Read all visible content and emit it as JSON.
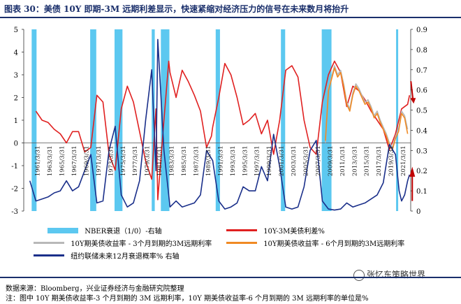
{
  "header": {
    "title": "图表 30：美债 10Y 即期-3M 远期利差显示，快速紧缩对经济压力的信号在未来数月将抬升"
  },
  "legend": {
    "nber": "NBER衰退（1/0）-右轴",
    "spread": "10Y-3M美债利差%",
    "fwd3m": "10Y期美债收益率 - 3个月到期的3M远期利率",
    "fwd6m": "10Y期美债收益率 - 6个月到期的3M远期利率",
    "prob": "纽约联储未来12月衰退概率% 右轴"
  },
  "footer": {
    "source": "数据来源：Bloomberg，兴业证券经济与金融研究院整理",
    "note": "注：图中 10Y 期美债收益率-3 个月到期的 3M 远期利率，10Y 期美债收益率-6 个月到期的 3M 远期利率的单位是%"
  },
  "watermark": "张忆东策略世界",
  "chart_data": {
    "type": "line",
    "x_range": [
      1959,
      2022.5
    ],
    "y_left": {
      "min": -3,
      "max": 5,
      "ticks": [
        -3,
        -2,
        -1,
        0,
        1,
        2,
        3,
        4,
        5
      ]
    },
    "y_right": {
      "min": 0,
      "max": 0.9,
      "ticks": [
        "0",
        "0.1",
        "0.2",
        "0.3",
        "0.4",
        "0.5",
        "0.6",
        "0.7",
        "0.8",
        "0.9"
      ]
    },
    "x_tick_labels": [
      "1961/3/31",
      "1963/3/31",
      "1965/3/31",
      "1967/3/31",
      "1969/3/31",
      "1971/3/31",
      "1973/3/31",
      "1975/3/31",
      "1977/3/31",
      "1979/3/31",
      "1981/3/31",
      "1983/3/31",
      "1985/3/31",
      "1987/3/31",
      "1989/3/31",
      "1991/3/31",
      "1993/3/31",
      "1995/3/31",
      "1997/3/31",
      "1999/3/31",
      "2001/3/31",
      "2003/3/31",
      "2005/3/31",
      "2007/3/31",
      "2009/3/31",
      "2011/3/31",
      "2013/3/31",
      "2015/3/31",
      "2017/3/31",
      "2019/3/31",
      "2021/3/31"
    ],
    "recessions": [
      [
        1960.3,
        1961.1
      ],
      [
        1969.9,
        1970.9
      ],
      [
        1973.9,
        1975.2
      ],
      [
        1980.0,
        1980.5
      ],
      [
        1981.5,
        1982.9
      ],
      [
        1990.5,
        1991.2
      ],
      [
        2001.2,
        2001.9
      ],
      [
        2007.9,
        2009.5
      ],
      [
        2020.1,
        2020.4
      ]
    ],
    "series": [
      {
        "name": "10Y-3M美债利差%",
        "color": "#e02020",
        "axis": "left",
        "points": [
          [
            1961,
            1.4
          ],
          [
            1962,
            1.0
          ],
          [
            1963,
            0.9
          ],
          [
            1964,
            0.6
          ],
          [
            1965,
            0.4
          ],
          [
            1966,
            0.0
          ],
          [
            1967,
            0.5
          ],
          [
            1968,
            0.5
          ],
          [
            1969,
            -0.4
          ],
          [
            1970,
            -0.2
          ],
          [
            1971,
            2.1
          ],
          [
            1972,
            1.8
          ],
          [
            1973,
            -0.5
          ],
          [
            1974,
            -1.2
          ],
          [
            1975,
            1.5
          ],
          [
            1976,
            2.5
          ],
          [
            1977,
            1.8
          ],
          [
            1978,
            0.5
          ],
          [
            1979,
            -0.8
          ],
          [
            1980,
            -1.6
          ],
          [
            1980.7,
            1.5
          ],
          [
            1981,
            -2.5
          ],
          [
            1982,
            1.0
          ],
          [
            1982.8,
            3.6
          ],
          [
            1983,
            3.1
          ],
          [
            1984,
            2.0
          ],
          [
            1985,
            3.2
          ],
          [
            1986,
            2.7
          ],
          [
            1987,
            2.1
          ],
          [
            1988,
            1.4
          ],
          [
            1989,
            -0.2
          ],
          [
            1989.8,
            0.3
          ],
          [
            1990,
            0.7
          ],
          [
            1991,
            2.0
          ],
          [
            1992,
            3.5
          ],
          [
            1993,
            3.0
          ],
          [
            1994,
            2.0
          ],
          [
            1995,
            0.8
          ],
          [
            1996,
            1.0
          ],
          [
            1997,
            1.3
          ],
          [
            1998,
            0.4
          ],
          [
            1999,
            1.0
          ],
          [
            2000,
            -0.5
          ],
          [
            2001,
            1.0
          ],
          [
            2002,
            3.2
          ],
          [
            2003,
            3.4
          ],
          [
            2004,
            2.9
          ],
          [
            2005,
            1.0
          ],
          [
            2006,
            -0.2
          ],
          [
            2007,
            -0.5
          ],
          [
            2008,
            1.8
          ],
          [
            2009,
            3.0
          ],
          [
            2010,
            3.6
          ],
          [
            2011,
            3.1
          ],
          [
            2012,
            1.6
          ],
          [
            2013,
            2.5
          ],
          [
            2014,
            2.3
          ],
          [
            2015,
            1.9
          ],
          [
            2016,
            1.4
          ],
          [
            2017,
            1.0
          ],
          [
            2018,
            0.6
          ],
          [
            2019,
            -0.3
          ],
          [
            2020,
            0.4
          ],
          [
            2021,
            1.5
          ],
          [
            2022,
            1.7
          ],
          [
            2022.3,
            2.1
          ]
        ]
      },
      {
        "name": "10Y期美债收益率 - 3个月到期的3M远期利率",
        "color": "#b8b8b8",
        "axis": "left",
        "points": [
          [
            2008.5,
            0.0
          ],
          [
            2009,
            2.4
          ],
          [
            2009.5,
            2.9
          ],
          [
            2010,
            3.4
          ],
          [
            2010.5,
            3.0
          ],
          [
            2011,
            3.2
          ],
          [
            2011.5,
            2.6
          ],
          [
            2012,
            1.8
          ],
          [
            2012.5,
            1.5
          ],
          [
            2013,
            2.2
          ],
          [
            2013.5,
            2.6
          ],
          [
            2014,
            2.4
          ],
          [
            2014.5,
            2.1
          ],
          [
            2015,
            1.8
          ],
          [
            2015.5,
            1.9
          ],
          [
            2016,
            1.6
          ],
          [
            2016.5,
            1.2
          ],
          [
            2017,
            1.4
          ],
          [
            2017.5,
            1.0
          ],
          [
            2018,
            0.7
          ],
          [
            2018.5,
            0.4
          ],
          [
            2019,
            0.0
          ],
          [
            2019.5,
            -0.2
          ],
          [
            2020,
            0.3
          ],
          [
            2020.5,
            0.6
          ],
          [
            2021,
            1.4
          ],
          [
            2021.5,
            1.2
          ],
          [
            2022,
            0.6
          ]
        ]
      },
      {
        "name": "10Y期美债收益率 - 6个月到期的3M远期利率",
        "color": "#f08a24",
        "axis": "left",
        "points": [
          [
            2008.5,
            0.1
          ],
          [
            2009,
            2.3
          ],
          [
            2009.5,
            2.8
          ],
          [
            2010,
            3.3
          ],
          [
            2010.5,
            2.9
          ],
          [
            2011,
            3.1
          ],
          [
            2011.5,
            2.5
          ],
          [
            2012,
            1.7
          ],
          [
            2012.5,
            1.4
          ],
          [
            2013,
            2.1
          ],
          [
            2013.5,
            2.5
          ],
          [
            2014,
            2.3
          ],
          [
            2014.5,
            2.0
          ],
          [
            2015,
            1.7
          ],
          [
            2015.5,
            1.8
          ],
          [
            2016,
            1.5
          ],
          [
            2016.5,
            1.1
          ],
          [
            2017,
            1.3
          ],
          [
            2017.5,
            0.9
          ],
          [
            2018,
            0.6
          ],
          [
            2018.5,
            0.3
          ],
          [
            2019,
            -0.1
          ],
          [
            2019.5,
            -0.3
          ],
          [
            2020,
            0.2
          ],
          [
            2020.5,
            0.5
          ],
          [
            2021,
            1.3
          ],
          [
            2021.5,
            1.1
          ],
          [
            2022,
            0.4
          ]
        ]
      },
      {
        "name": "纽约联储未来12月衰退概率% 右轴",
        "color": "#1a2f8a",
        "axis": "right",
        "points": [
          [
            1960,
            0.15
          ],
          [
            1961,
            0.05
          ],
          [
            1962,
            0.06
          ],
          [
            1963,
            0.07
          ],
          [
            1964,
            0.09
          ],
          [
            1965,
            0.1
          ],
          [
            1966,
            0.15
          ],
          [
            1967,
            0.1
          ],
          [
            1968,
            0.12
          ],
          [
            1969,
            0.2
          ],
          [
            1970,
            0.28
          ],
          [
            1971,
            0.04
          ],
          [
            1972,
            0.05
          ],
          [
            1973,
            0.3
          ],
          [
            1974,
            0.42
          ],
          [
            1975,
            0.08
          ],
          [
            1976,
            0.02
          ],
          [
            1977,
            0.04
          ],
          [
            1978,
            0.15
          ],
          [
            1979,
            0.45
          ],
          [
            1980,
            0.7
          ],
          [
            1980.7,
            0.2
          ],
          [
            1981,
            0.85
          ],
          [
            1982,
            0.3
          ],
          [
            1983,
            0.02
          ],
          [
            1984,
            0.05
          ],
          [
            1985,
            0.02
          ],
          [
            1986,
            0.03
          ],
          [
            1987,
            0.04
          ],
          [
            1988,
            0.08
          ],
          [
            1989,
            0.3
          ],
          [
            1990,
            0.25
          ],
          [
            1991,
            0.05
          ],
          [
            1992,
            0.01
          ],
          [
            1993,
            0.02
          ],
          [
            1994,
            0.04
          ],
          [
            1995,
            0.12
          ],
          [
            1996,
            0.1
          ],
          [
            1997,
            0.1
          ],
          [
            1998,
            0.22
          ],
          [
            1999,
            0.15
          ],
          [
            2000,
            0.38
          ],
          [
            2001,
            0.22
          ],
          [
            2002,
            0.02
          ],
          [
            2003,
            0.01
          ],
          [
            2004,
            0.02
          ],
          [
            2005,
            0.12
          ],
          [
            2006,
            0.3
          ],
          [
            2007,
            0.35
          ],
          [
            2008,
            0.05
          ],
          [
            2009,
            0.01
          ],
          [
            2010,
            0.005
          ],
          [
            2011,
            0.01
          ],
          [
            2012,
            0.04
          ],
          [
            2013,
            0.02
          ],
          [
            2014,
            0.03
          ],
          [
            2015,
            0.04
          ],
          [
            2016,
            0.06
          ],
          [
            2017,
            0.08
          ],
          [
            2018,
            0.14
          ],
          [
            2019,
            0.33
          ],
          [
            2020,
            0.28
          ],
          [
            2020.6,
            0.1
          ],
          [
            2021,
            0.05
          ],
          [
            2021.5,
            0.08
          ],
          [
            2022,
            0.15
          ],
          [
            2022.3,
            0.18
          ]
        ]
      }
    ]
  }
}
